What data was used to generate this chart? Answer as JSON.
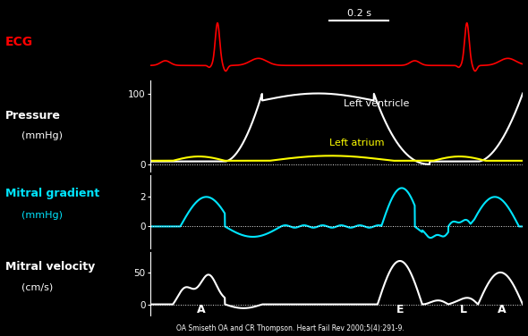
{
  "bg_color": "#000000",
  "ecg_color": "#ff0000",
  "pressure_lv_color": "#ffffff",
  "pressure_la_color": "#ffff00",
  "mitral_gradient_color": "#00e5ff",
  "mitral_velocity_color": "#ffffff",
  "label_color": "#ffffff",
  "ecg_label": "ECG",
  "pressure_label1": "Pressure",
  "pressure_label2": "(mmHg)",
  "mitral_gradient_label1": "Mitral gradient",
  "mitral_gradient_label2": "(mmHg)",
  "mitral_velocity_label1": "Mitral velocity",
  "mitral_velocity_label2": "(cm/s)",
  "lv_label": "Left ventricle",
  "la_label": "Left atrium",
  "citation": "OA Smiseth OA and CR Thompson. Heart Fail Rev 2000;5(4):291-9.",
  "timebar_label": "0.2 s"
}
